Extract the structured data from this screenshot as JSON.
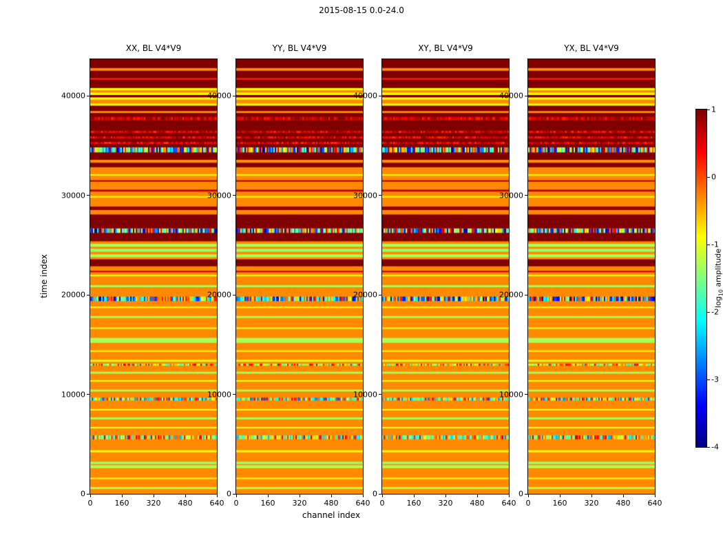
{
  "figure": {
    "title": "2015-08-15 0.0-24.0"
  },
  "chart_data": {
    "type": "heatmap",
    "title": "2015-08-15 0.0-24.0",
    "panels": [
      "XX, BL V4*V9",
      "YY, BL V4*V9",
      "XY, BL V4*V9",
      "YX, BL V4*V9"
    ],
    "xlabel": "channel index",
    "ylabel": "time index",
    "xlim": [
      0,
      640
    ],
    "xticks": [
      0,
      160,
      320,
      480,
      640
    ],
    "ylim": [
      0,
      43700
    ],
    "yticks": [
      0,
      10000,
      20000,
      30000,
      40000
    ],
    "colormap": "jet",
    "base_value": -0.3,
    "colorbar": {
      "label": "log10 amplitude",
      "label_pre": "log",
      "label_sub": "10",
      "label_post": " amplitude",
      "vmin": -4,
      "vmax": 1,
      "ticks": [
        1,
        0,
        -1,
        -2,
        -3,
        -4
      ]
    },
    "bands": [
      {
        "t0": 480,
        "t1": 680,
        "v": -1.2
      },
      {
        "t0": 1480,
        "t1": 1620,
        "v": -0.9
      },
      {
        "t0": 2580,
        "t1": 2880,
        "v": -1.3
      },
      {
        "t0": 2990,
        "t1": 3230,
        "v": -1.4
      },
      {
        "t0": 4180,
        "t1": 4380,
        "v": -0.9
      },
      {
        "t0": 5480,
        "t1": 5880,
        "kind": "speckle",
        "vmin": -2.5,
        "vmax": 0.6
      },
      {
        "t0": 6580,
        "t1": 6730,
        "v": -1.0
      },
      {
        "t0": 7490,
        "t1": 7690,
        "v": -1.3
      },
      {
        "t0": 8380,
        "t1": 8530,
        "v": -0.9
      },
      {
        "t0": 9380,
        "t1": 9680,
        "kind": "speckle",
        "vmin": -3.0,
        "vmax": 0.6
      },
      {
        "t0": 10280,
        "t1": 10480,
        "v": -1.3
      },
      {
        "t0": 11280,
        "t1": 11430,
        "v": -0.9
      },
      {
        "t0": 12080,
        "t1": 12280,
        "v": -1.3
      },
      {
        "t0": 12880,
        "t1": 13080,
        "kind": "speckle",
        "vmin": -2.0,
        "vmax": 0.6
      },
      {
        "t0": 13280,
        "t1": 13470,
        "v": -1.0
      },
      {
        "t0": 14280,
        "t1": 14430,
        "v": -0.9
      },
      {
        "t0": 15180,
        "t1": 15680,
        "v": -1.3
      },
      {
        "t0": 16580,
        "t1": 16730,
        "v": -1.0
      },
      {
        "t0": 17680,
        "t1": 17880,
        "v": -1.3
      },
      {
        "t0": 18680,
        "t1": 18830,
        "v": -0.9
      },
      {
        "t0": 19380,
        "t1": 19830,
        "kind": "speckle",
        "vmin": -4.0,
        "vmax": 0.6
      },
      {
        "t0": 20780,
        "t1": 20980,
        "v": -1.3
      },
      {
        "t0": 21880,
        "t1": 22030,
        "v": -0.9
      },
      {
        "t0": 22280,
        "t1": 22430,
        "v": 0.6
      },
      {
        "t0": 22880,
        "t1": 23580,
        "v": 1.0
      },
      {
        "t0": 23790,
        "t1": 24080,
        "v": -1.3
      },
      {
        "t0": 24340,
        "t1": 24640,
        "v": -1.4
      },
      {
        "t0": 24840,
        "t1": 25140,
        "v": -1.3
      },
      {
        "t0": 25390,
        "t1": 26240,
        "v": 1.0
      },
      {
        "t0": 26240,
        "t1": 26690,
        "kind": "speckle",
        "vmin": -4.0,
        "vmax": 0.9
      },
      {
        "t0": 26690,
        "t1": 28090,
        "v": 1.0
      },
      {
        "t0": 28540,
        "t1": 28890,
        "v": 0.9
      },
      {
        "t0": 29790,
        "t1": 29940,
        "v": -0.9
      },
      {
        "t0": 30390,
        "t1": 30590,
        "v": 0.7
      },
      {
        "t0": 31390,
        "t1": 31540,
        "v": 0.7
      },
      {
        "t0": 31990,
        "t1": 32140,
        "v": -0.9
      },
      {
        "t0": 32840,
        "t1": 33290,
        "v": 1.0
      },
      {
        "t0": 33590,
        "t1": 34340,
        "v": 1.0
      },
      {
        "t0": 34340,
        "t1": 34840,
        "kind": "speckle",
        "vmin": -4.0,
        "vmax": 1.0
      },
      {
        "t0": 34840,
        "t1": 35190,
        "v": 1.0
      },
      {
        "t0": 35190,
        "t1": 35390,
        "kind": "speckle",
        "vmin": 0.1,
        "vmax": 1.0
      },
      {
        "t0": 35390,
        "t1": 35740,
        "v": 1.0
      },
      {
        "t0": 35740,
        "t1": 35940,
        "kind": "speckle",
        "vmin": 0.1,
        "vmax": 1.0
      },
      {
        "t0": 35940,
        "t1": 36290,
        "v": 1.0
      },
      {
        "t0": 36290,
        "t1": 36490,
        "kind": "speckle",
        "vmin": 0.1,
        "vmax": 1.0
      },
      {
        "t0": 36490,
        "t1": 37590,
        "v": 1.0
      },
      {
        "t0": 37590,
        "t1": 37890,
        "kind": "speckle",
        "vmin": 0.2,
        "vmax": 1.0
      },
      {
        "t0": 37890,
        "t1": 38290,
        "v": 1.0
      },
      {
        "t0": 38490,
        "t1": 39040,
        "v": 1.0
      },
      {
        "t0": 39040,
        "t1": 39240,
        "v": -0.9
      },
      {
        "t0": 39640,
        "t1": 39870,
        "v": -0.9
      },
      {
        "t0": 39870,
        "t1": 40110,
        "v": 1.0
      },
      {
        "t0": 40110,
        "t1": 40340,
        "v": -0.9
      },
      {
        "t0": 40590,
        "t1": 40810,
        "v": -0.9
      },
      {
        "t0": 40810,
        "t1": 42540,
        "v": 1.0
      },
      {
        "t0": 41640,
        "t1": 41800,
        "v": 0.2
      },
      {
        "t0": 42810,
        "t1": 43700,
        "v": 1.0
      }
    ]
  }
}
